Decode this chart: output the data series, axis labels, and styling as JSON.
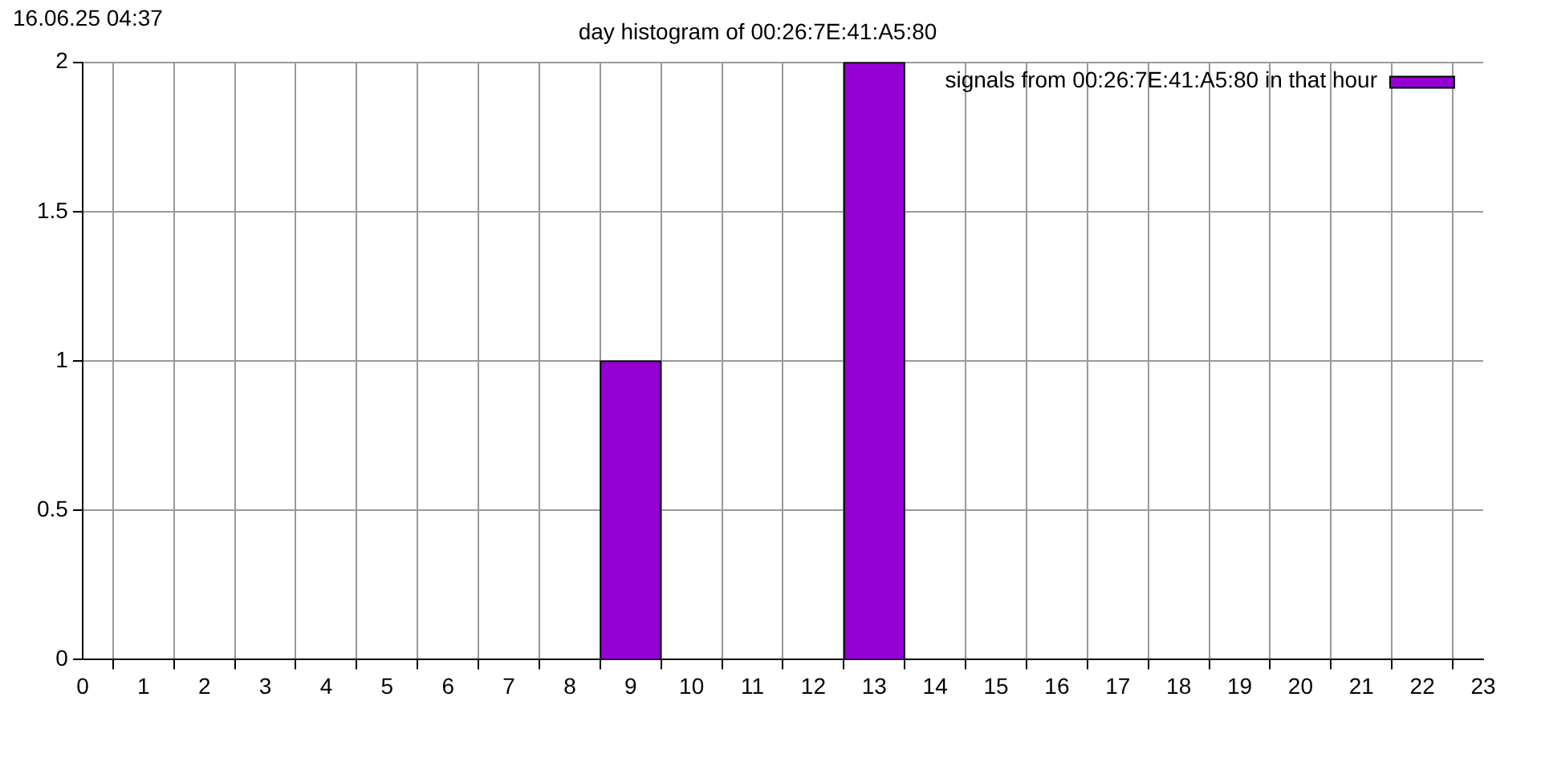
{
  "chart_data": {
    "type": "bar",
    "title": "day histogram of 00:26:7E:41:A5:80",
    "annotations": [
      "16.06.25 04:37"
    ],
    "x": [
      0,
      1,
      2,
      3,
      4,
      5,
      6,
      7,
      8,
      9,
      10,
      11,
      12,
      13,
      14,
      15,
      16,
      17,
      18,
      19,
      20,
      21,
      22
    ],
    "series": [
      {
        "name": "signals from 00:26:7E:41:A5:80 in that hour",
        "color": "#9400d3",
        "values": [
          0,
          0,
          0,
          0,
          0,
          0,
          0,
          0,
          0,
          1,
          0,
          0,
          0,
          2,
          0,
          0,
          0,
          0,
          0,
          0,
          0,
          0,
          0
        ]
      }
    ],
    "xlim": [
      0,
      23
    ],
    "xticks": [
      0,
      1,
      2,
      3,
      4,
      5,
      6,
      7,
      8,
      9,
      10,
      11,
      12,
      13,
      14,
      15,
      16,
      17,
      18,
      19,
      20,
      21,
      22,
      23
    ],
    "ylim": [
      0,
      2
    ],
    "yticks": [
      0,
      0.5,
      1,
      1.5,
      2
    ],
    "grid": true,
    "legend": "top right"
  }
}
